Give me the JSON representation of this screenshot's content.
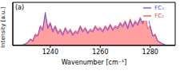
{
  "chart_data": {
    "type": "line",
    "title": "(a)",
    "x_label": "Wavenumber [cm⁻¹]",
    "y_label": "Intensity [a.u.]",
    "x": [
      1229,
      1230,
      1231,
      1232,
      1233,
      1234,
      1235,
      1236,
      1237,
      1238,
      1239,
      1240,
      1241,
      1242,
      1243,
      1244,
      1245,
      1246,
      1247,
      1248,
      1249,
      1250,
      1251,
      1252,
      1253,
      1254,
      1255,
      1256,
      1257,
      1258,
      1259,
      1260,
      1261,
      1262,
      1263,
      1264,
      1265,
      1266,
      1267,
      1268,
      1269,
      1270,
      1271,
      1272,
      1273,
      1274,
      1275,
      1276,
      1277,
      1278,
      1279,
      1280,
      1281,
      1282,
      1283,
      1284,
      1285,
      1286
    ],
    "series": [
      {
        "name": "FC₁",
        "color": "#4a4aff",
        "type": "line",
        "values": [
          0.02,
          0.04,
          0.08,
          0.18,
          0.12,
          0.3,
          0.28,
          0.55,
          0.45,
          1.0,
          0.5,
          0.65,
          0.4,
          0.55,
          0.35,
          0.45,
          0.3,
          0.5,
          0.35,
          0.45,
          0.3,
          0.4,
          0.35,
          0.55,
          0.4,
          0.5,
          0.35,
          0.45,
          0.4,
          0.55,
          0.45,
          0.5,
          0.4,
          0.55,
          0.45,
          0.6,
          0.45,
          0.55,
          0.5,
          0.65,
          0.55,
          0.7,
          0.5,
          0.75,
          0.55,
          0.7,
          0.6,
          0.8,
          0.65,
          0.9,
          0.95,
          0.55,
          0.28,
          0.3,
          0.12,
          0.08,
          0.04,
          0.02
        ]
      },
      {
        "name": "FC₂",
        "color": "#ff4040",
        "type": "area",
        "values": [
          0.02,
          0.05,
          0.1,
          0.2,
          0.15,
          0.35,
          0.3,
          0.6,
          0.5,
          0.95,
          0.55,
          0.7,
          0.45,
          0.6,
          0.4,
          0.5,
          0.35,
          0.55,
          0.4,
          0.5,
          0.35,
          0.45,
          0.4,
          0.6,
          0.45,
          0.55,
          0.4,
          0.5,
          0.45,
          0.6,
          0.5,
          0.55,
          0.45,
          0.6,
          0.5,
          0.65,
          0.5,
          0.6,
          0.55,
          0.7,
          0.6,
          0.75,
          0.55,
          0.8,
          0.6,
          0.75,
          0.65,
          0.85,
          0.7,
          0.98,
          0.5,
          0.6,
          0.3,
          0.35,
          0.15,
          0.1,
          0.05,
          0.02
        ]
      }
    ],
    "xlim": [
      1225,
      1290
    ],
    "xticks": [
      1240,
      1260,
      1280
    ],
    "ylim": [
      0,
      1.3
    ],
    "tick_labels": "x",
    "legend": "upper right"
  }
}
